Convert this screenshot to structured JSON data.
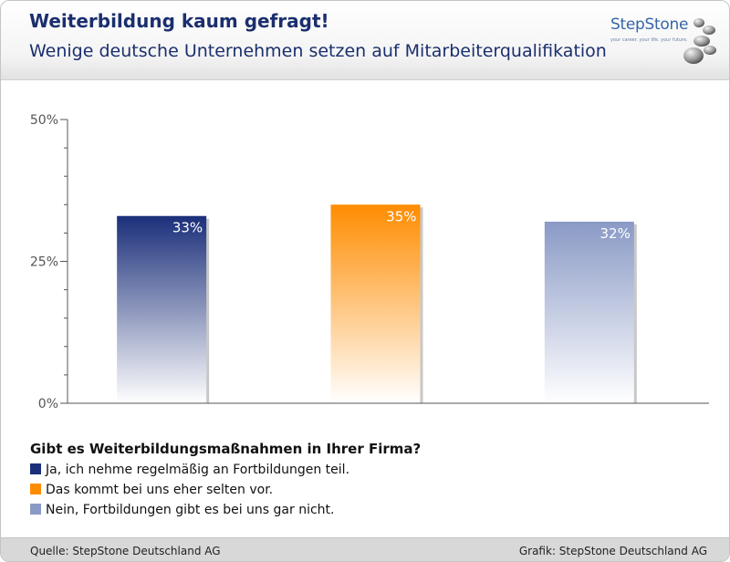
{
  "header": {
    "title": "Weiterbildung kaum gefragt!",
    "subtitle": "Wenige deutsche Unternehmen setzen auf Mitarbeiterqualifikation"
  },
  "logo": {
    "name": "StepStone",
    "tagline": "your career. your life. your future."
  },
  "chart_data": {
    "type": "bar",
    "categories": [
      "Ja, ich nehme regelmäßig an Fortbildungen teil.",
      "Das kommt bei uns eher selten vor.",
      "Nein, Fortbildungen gibt es bei uns gar nicht."
    ],
    "values": [
      33,
      35,
      32
    ],
    "value_labels": [
      "33%",
      "35%",
      "32%"
    ],
    "colors": [
      "#1b2f7a",
      "#ff8c00",
      "#8a9ac6"
    ],
    "ylim": [
      0,
      50
    ],
    "yticks": [
      {
        "value": 0,
        "label": "0%"
      },
      {
        "value": 25,
        "label": "25%"
      },
      {
        "value": 50,
        "label": "50%"
      }
    ],
    "grid": false,
    "legend_position": "bottom-left"
  },
  "legend": {
    "title": "Gibt es Weiterbildungsmaßnahmen in Ihrer Firma?",
    "items": [
      {
        "label": "Ja, ich nehme regelmäßig an Fortbildungen teil.",
        "color": "#1b2f7a"
      },
      {
        "label": "Das kommt bei uns eher selten vor.",
        "color": "#ff8c00"
      },
      {
        "label": "Nein, Fortbildungen gibt es bei uns gar nicht.",
        "color": "#8a9ac6"
      }
    ]
  },
  "footer": {
    "source": "Quelle: StepStone Deutschland AG",
    "graphic": "Grafik: StepStone Deutschland AG"
  }
}
